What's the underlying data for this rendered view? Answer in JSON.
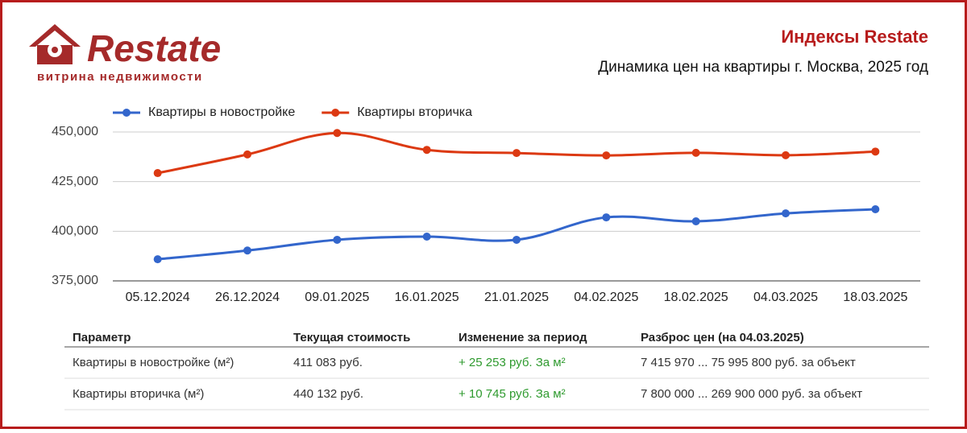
{
  "header": {
    "logo": {
      "name": "Restate",
      "tagline": "витрина недвижимости"
    },
    "title": "Индексы Restate",
    "subtitle": "Динамика цен на квартиры г. Москва, 2025 год"
  },
  "chart_data": {
    "type": "line",
    "categories": [
      "05.12.2024",
      "26.12.2024",
      "09.01.2025",
      "16.01.2025",
      "21.01.2025",
      "04.02.2025",
      "18.02.2025",
      "04.03.2025",
      "18.03.2025"
    ],
    "series": [
      {
        "name": "Квартиры в новостройке",
        "color": "#3366cc",
        "values": [
          385900,
          390300,
          395700,
          397300,
          395700,
          407000,
          405000,
          409000,
          411083
        ]
      },
      {
        "name": "Квартиры вторичка",
        "color": "#dc3912",
        "values": [
          429300,
          438700,
          449500,
          441000,
          439400,
          438200,
          439500,
          438300,
          440132
        ]
      }
    ],
    "ylim": [
      375000,
      450000
    ],
    "yticks": [
      {
        "value": 375000,
        "label": "375,000"
      },
      {
        "value": 400000,
        "label": "400,000"
      },
      {
        "value": 425000,
        "label": "425,000"
      },
      {
        "value": 450000,
        "label": "450,000"
      }
    ],
    "grid": true,
    "legend": "top"
  },
  "table": {
    "columns": [
      "Параметр",
      "Текущая стоимость",
      "Изменение за период",
      "Разброс цен (на 04.03.2025)"
    ],
    "rows": [
      [
        "Квартиры в новостройке (м²)",
        "411 083 руб.",
        "+ 25 253 руб. За м²",
        "7 415 970 ... 75 995 800 руб. за объект"
      ],
      [
        "Квартиры вторичка (м²)",
        "440 132 руб.",
        "+ 10 745 руб. За м²",
        "7 800 000 ... 269 900 000 руб. за объект"
      ]
    ]
  }
}
